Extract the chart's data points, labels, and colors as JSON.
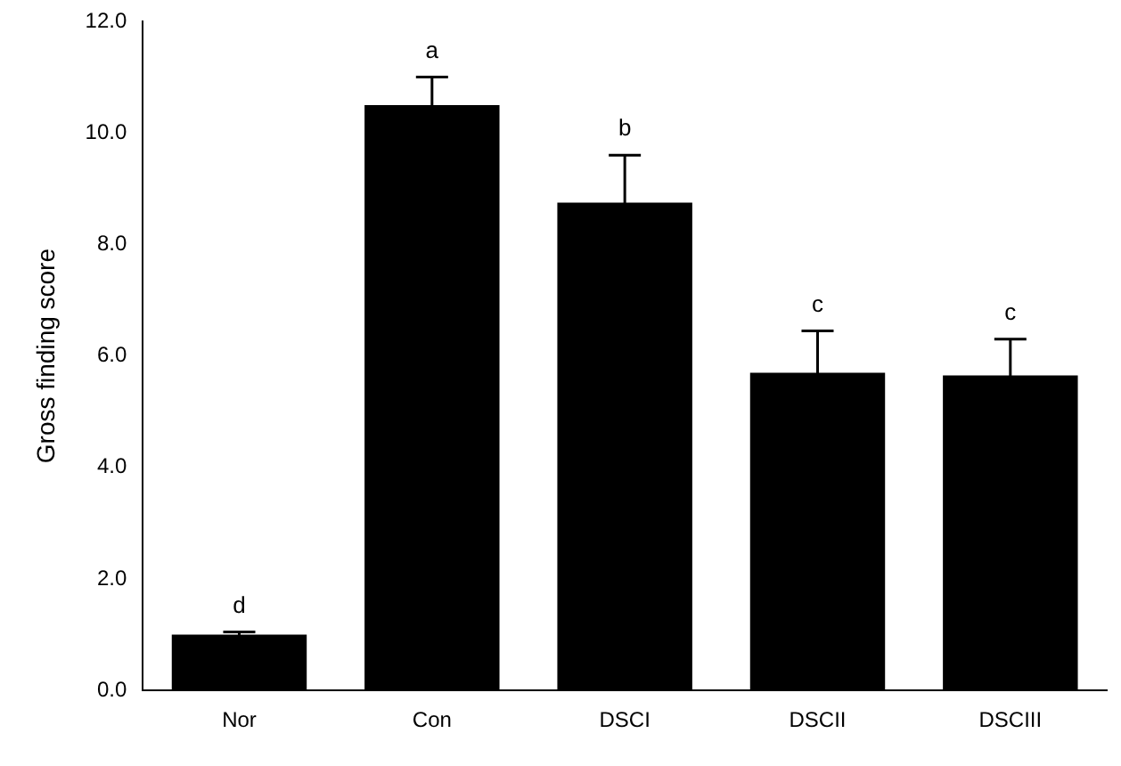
{
  "chart_data": {
    "type": "bar",
    "ylabel": "Gross finding score",
    "categories": [
      "Nor",
      "Con",
      "DSCI",
      "DSCII",
      "DSCIII"
    ],
    "values": [
      1.0,
      10.5,
      8.75,
      5.7,
      5.65
    ],
    "color": "#000000",
    "errors": [
      0.05,
      0.5,
      0.85,
      0.75,
      0.65
    ],
    "ylim": [
      0,
      12
    ],
    "yticks": [
      {
        "value": 0,
        "label": "0.0"
      },
      {
        "value": 2,
        "label": "2.0"
      },
      {
        "value": 4,
        "label": "4.0"
      },
      {
        "value": 6,
        "label": "6.0"
      },
      {
        "value": 8,
        "label": "8.0"
      },
      {
        "value": 10,
        "label": "10.0"
      },
      {
        "value": 12,
        "label": "12.0"
      }
    ],
    "grid": false,
    "legend": false,
    "annotations": [
      {
        "text": "d",
        "x": "Nor",
        "y": 1.0
      },
      {
        "text": "a",
        "x": "Con",
        "y": 10.5
      },
      {
        "text": "b",
        "x": "DSCI",
        "y": 8.75
      },
      {
        "text": "c",
        "x": "DSCII",
        "y": 5.7
      },
      {
        "text": "c",
        "x": "DSCIII",
        "y": 5.65
      }
    ]
  }
}
